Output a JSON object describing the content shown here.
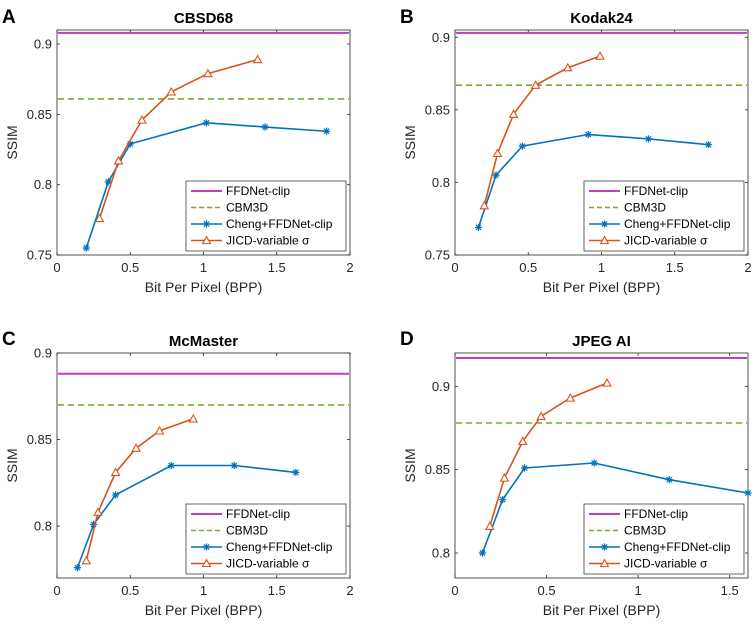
{
  "legend": [
    "FFDNet-clip",
    "CBM3D",
    "Cheng+FFDNet-clip",
    "JICD-variable σ"
  ],
  "colors": {
    "ffdnet": "#BF3FBF",
    "cbm3d": "#77AC30",
    "cheng": "#0072BD",
    "jicd": "#D95319"
  },
  "chart_data": [
    {
      "panel": "A",
      "type": "line",
      "title": "CBSD68",
      "xlabel": "Bit Per Pixel (BPP)",
      "ylabel": "SSIM",
      "xlim": [
        0,
        2
      ],
      "ylim": [
        0.75,
        0.91
      ],
      "xticks": [
        0,
        0.5,
        1,
        1.5,
        2
      ],
      "xtick_labels": [
        "0",
        "0.5",
        "1",
        "1.5",
        "2"
      ],
      "yticks": [
        0.75,
        0.8,
        0.85,
        0.9
      ],
      "ytick_labels": [
        "0.75",
        "0.8",
        "0.85",
        "0.9"
      ],
      "series": [
        {
          "name": "FFDNet-clip",
          "style": "solid",
          "constant": 0.908
        },
        {
          "name": "CBM3D",
          "style": "dashed",
          "constant": 0.861
        },
        {
          "name": "Cheng+FFDNet-clip",
          "style": "star",
          "x": [
            0.2,
            0.35,
            0.5,
            1.02,
            1.42,
            1.84
          ],
          "y": [
            0.755,
            0.802,
            0.829,
            0.844,
            0.841,
            0.838
          ]
        },
        {
          "name": "JICD-variable σ",
          "style": "triangle",
          "x": [
            0.29,
            0.42,
            0.58,
            0.78,
            1.03,
            1.37
          ],
          "y": [
            0.776,
            0.817,
            0.846,
            0.866,
            0.879,
            0.889
          ]
        }
      ]
    },
    {
      "panel": "B",
      "type": "line",
      "title": "Kodak24",
      "xlabel": "Bit Per Pixel (BPP)",
      "ylabel": "SSIM",
      "xlim": [
        0,
        2
      ],
      "ylim": [
        0.75,
        0.905
      ],
      "xticks": [
        0,
        0.5,
        1,
        1.5,
        2
      ],
      "xtick_labels": [
        "0",
        "0.5",
        "1",
        "1.5",
        "2"
      ],
      "yticks": [
        0.75,
        0.8,
        0.85,
        0.9
      ],
      "ytick_labels": [
        "0.75",
        "0.8",
        "0.85",
        "0.9"
      ],
      "series": [
        {
          "name": "FFDNet-clip",
          "style": "solid",
          "constant": 0.903
        },
        {
          "name": "CBM3D",
          "style": "dashed",
          "constant": 0.867
        },
        {
          "name": "Cheng+FFDNet-clip",
          "style": "star",
          "x": [
            0.16,
            0.28,
            0.46,
            0.91,
            1.32,
            1.73
          ],
          "y": [
            0.769,
            0.805,
            0.825,
            0.833,
            0.83,
            0.826
          ]
        },
        {
          "name": "JICD-variable σ",
          "style": "triangle",
          "x": [
            0.2,
            0.29,
            0.4,
            0.55,
            0.77,
            0.99
          ],
          "y": [
            0.784,
            0.82,
            0.847,
            0.867,
            0.879,
            0.887
          ]
        }
      ]
    },
    {
      "panel": "C",
      "type": "line",
      "title": "McMaster",
      "xlabel": "Bit Per Pixel (BPP)",
      "ylabel": "SSIM",
      "xlim": [
        0,
        2
      ],
      "ylim": [
        0.77,
        0.9
      ],
      "xticks": [
        0,
        0.5,
        1,
        1.5,
        2
      ],
      "xtick_labels": [
        "0",
        "0.5",
        "1",
        "1.5",
        "2"
      ],
      "yticks": [
        0.8,
        0.85,
        0.9
      ],
      "ytick_labels": [
        "0.8",
        "0.85",
        "0.9"
      ],
      "series": [
        {
          "name": "FFDNet-clip",
          "style": "solid",
          "constant": 0.888
        },
        {
          "name": "CBM3D",
          "style": "dashed",
          "constant": 0.87
        },
        {
          "name": "Cheng+FFDNet-clip",
          "style": "star",
          "x": [
            0.14,
            0.25,
            0.4,
            0.78,
            1.21,
            1.63
          ],
          "y": [
            0.776,
            0.801,
            0.818,
            0.835,
            0.835,
            0.831
          ]
        },
        {
          "name": "JICD-variable σ",
          "style": "triangle",
          "x": [
            0.2,
            0.28,
            0.4,
            0.54,
            0.7,
            0.93
          ],
          "y": [
            0.78,
            0.808,
            0.831,
            0.845,
            0.855,
            0.862
          ]
        }
      ]
    },
    {
      "panel": "D",
      "type": "line",
      "title": "JPEG AI",
      "xlabel": "Bit Per Pixel (BPP)",
      "ylabel": "SSIM",
      "xlim": [
        0,
        1.6
      ],
      "ylim": [
        0.785,
        0.92
      ],
      "xticks": [
        0,
        0.5,
        1,
        1.5
      ],
      "xtick_labels": [
        "0",
        "0.5",
        "1",
        "1.5"
      ],
      "yticks": [
        0.8,
        0.85,
        0.9
      ],
      "ytick_labels": [
        "0.8",
        "0.85",
        "0.9"
      ],
      "series": [
        {
          "name": "FFDNet-clip",
          "style": "solid",
          "constant": 0.917
        },
        {
          "name": "CBM3D",
          "style": "dashed",
          "constant": 0.878
        },
        {
          "name": "Cheng+FFDNet-clip",
          "style": "star",
          "x": [
            0.15,
            0.26,
            0.38,
            0.76,
            1.17,
            1.6
          ],
          "y": [
            0.8,
            0.832,
            0.851,
            0.854,
            0.844,
            0.836
          ]
        },
        {
          "name": "JICD-variable σ",
          "style": "triangle",
          "x": [
            0.19,
            0.27,
            0.37,
            0.47,
            0.63,
            0.83
          ],
          "y": [
            0.816,
            0.845,
            0.867,
            0.882,
            0.893,
            0.902
          ]
        }
      ]
    }
  ]
}
